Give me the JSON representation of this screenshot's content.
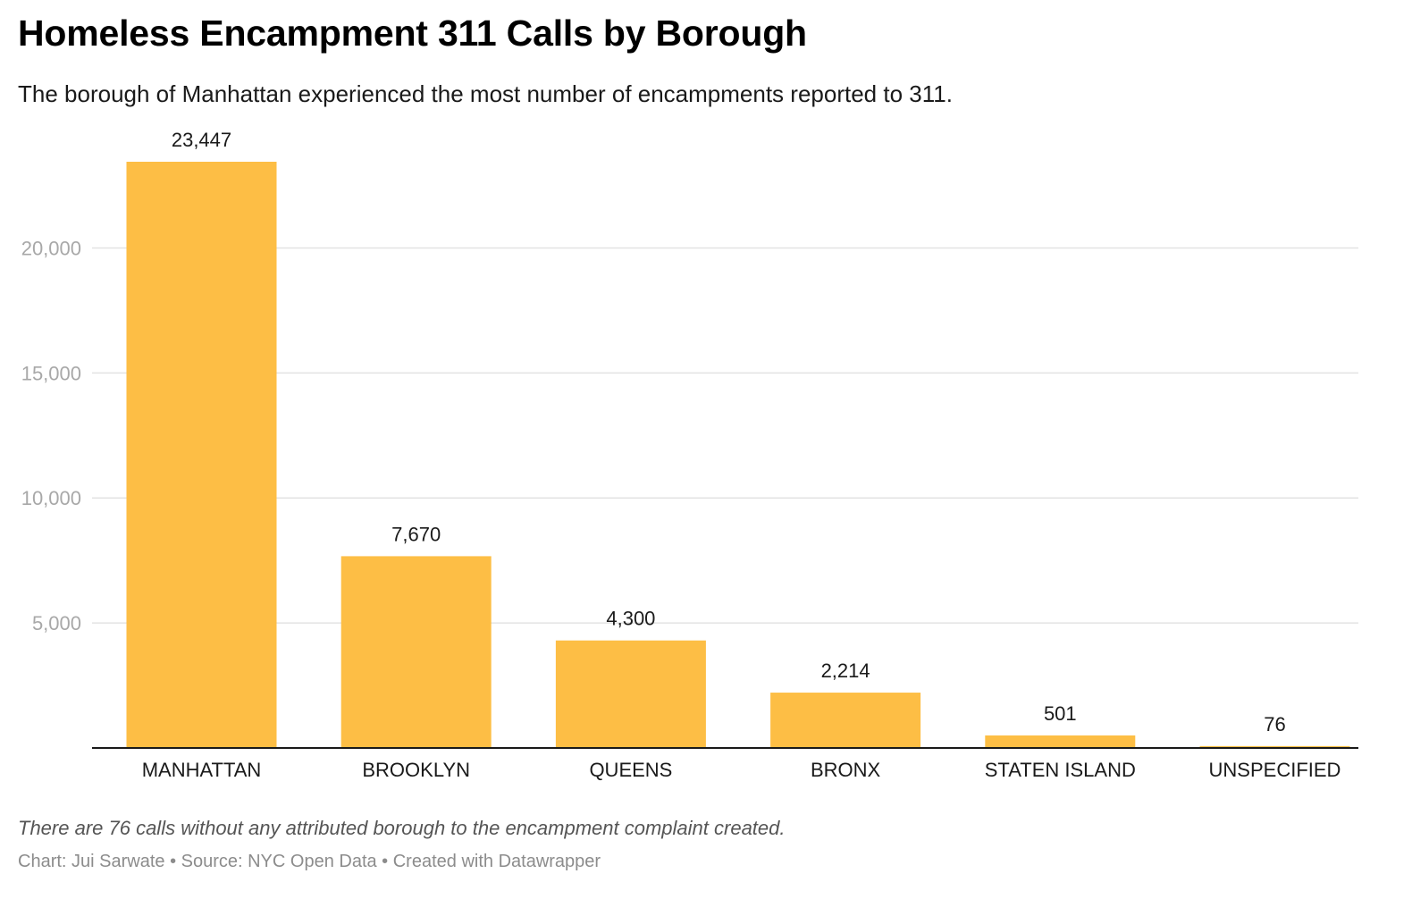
{
  "title": "Homeless Encampment 311 Calls by Borough",
  "subtitle": "The borough of Manhattan experienced the most number of encampments reported to 311.",
  "note": "There are 76 calls without any attributed borough to the encampment complaint created.",
  "credits": "Chart: Jui Sarwate • Source: NYC Open Data • Created with Datawrapper",
  "colors": {
    "bar": "#fdbe45",
    "grid": "#e3e3e3",
    "axis": "#1a1a1a",
    "y_tick_text": "#a8a8a8"
  },
  "chart_data": {
    "type": "bar",
    "categories": [
      "MANHATTAN",
      "BROOKLYN",
      "QUEENS",
      "BRONX",
      "STATEN ISLAND",
      "UNSPECIFIED"
    ],
    "values": [
      23447,
      7670,
      4300,
      2214,
      501,
      76
    ],
    "value_labels": [
      "23,447",
      "7,670",
      "4,300",
      "2,214",
      "501",
      "76"
    ],
    "y_ticks": [
      5000,
      10000,
      15000,
      20000
    ],
    "y_tick_labels": [
      "5,000",
      "10,000",
      "15,000",
      "20,000"
    ],
    "ylim": [
      0,
      23447
    ],
    "grid": true,
    "legend": "none"
  }
}
